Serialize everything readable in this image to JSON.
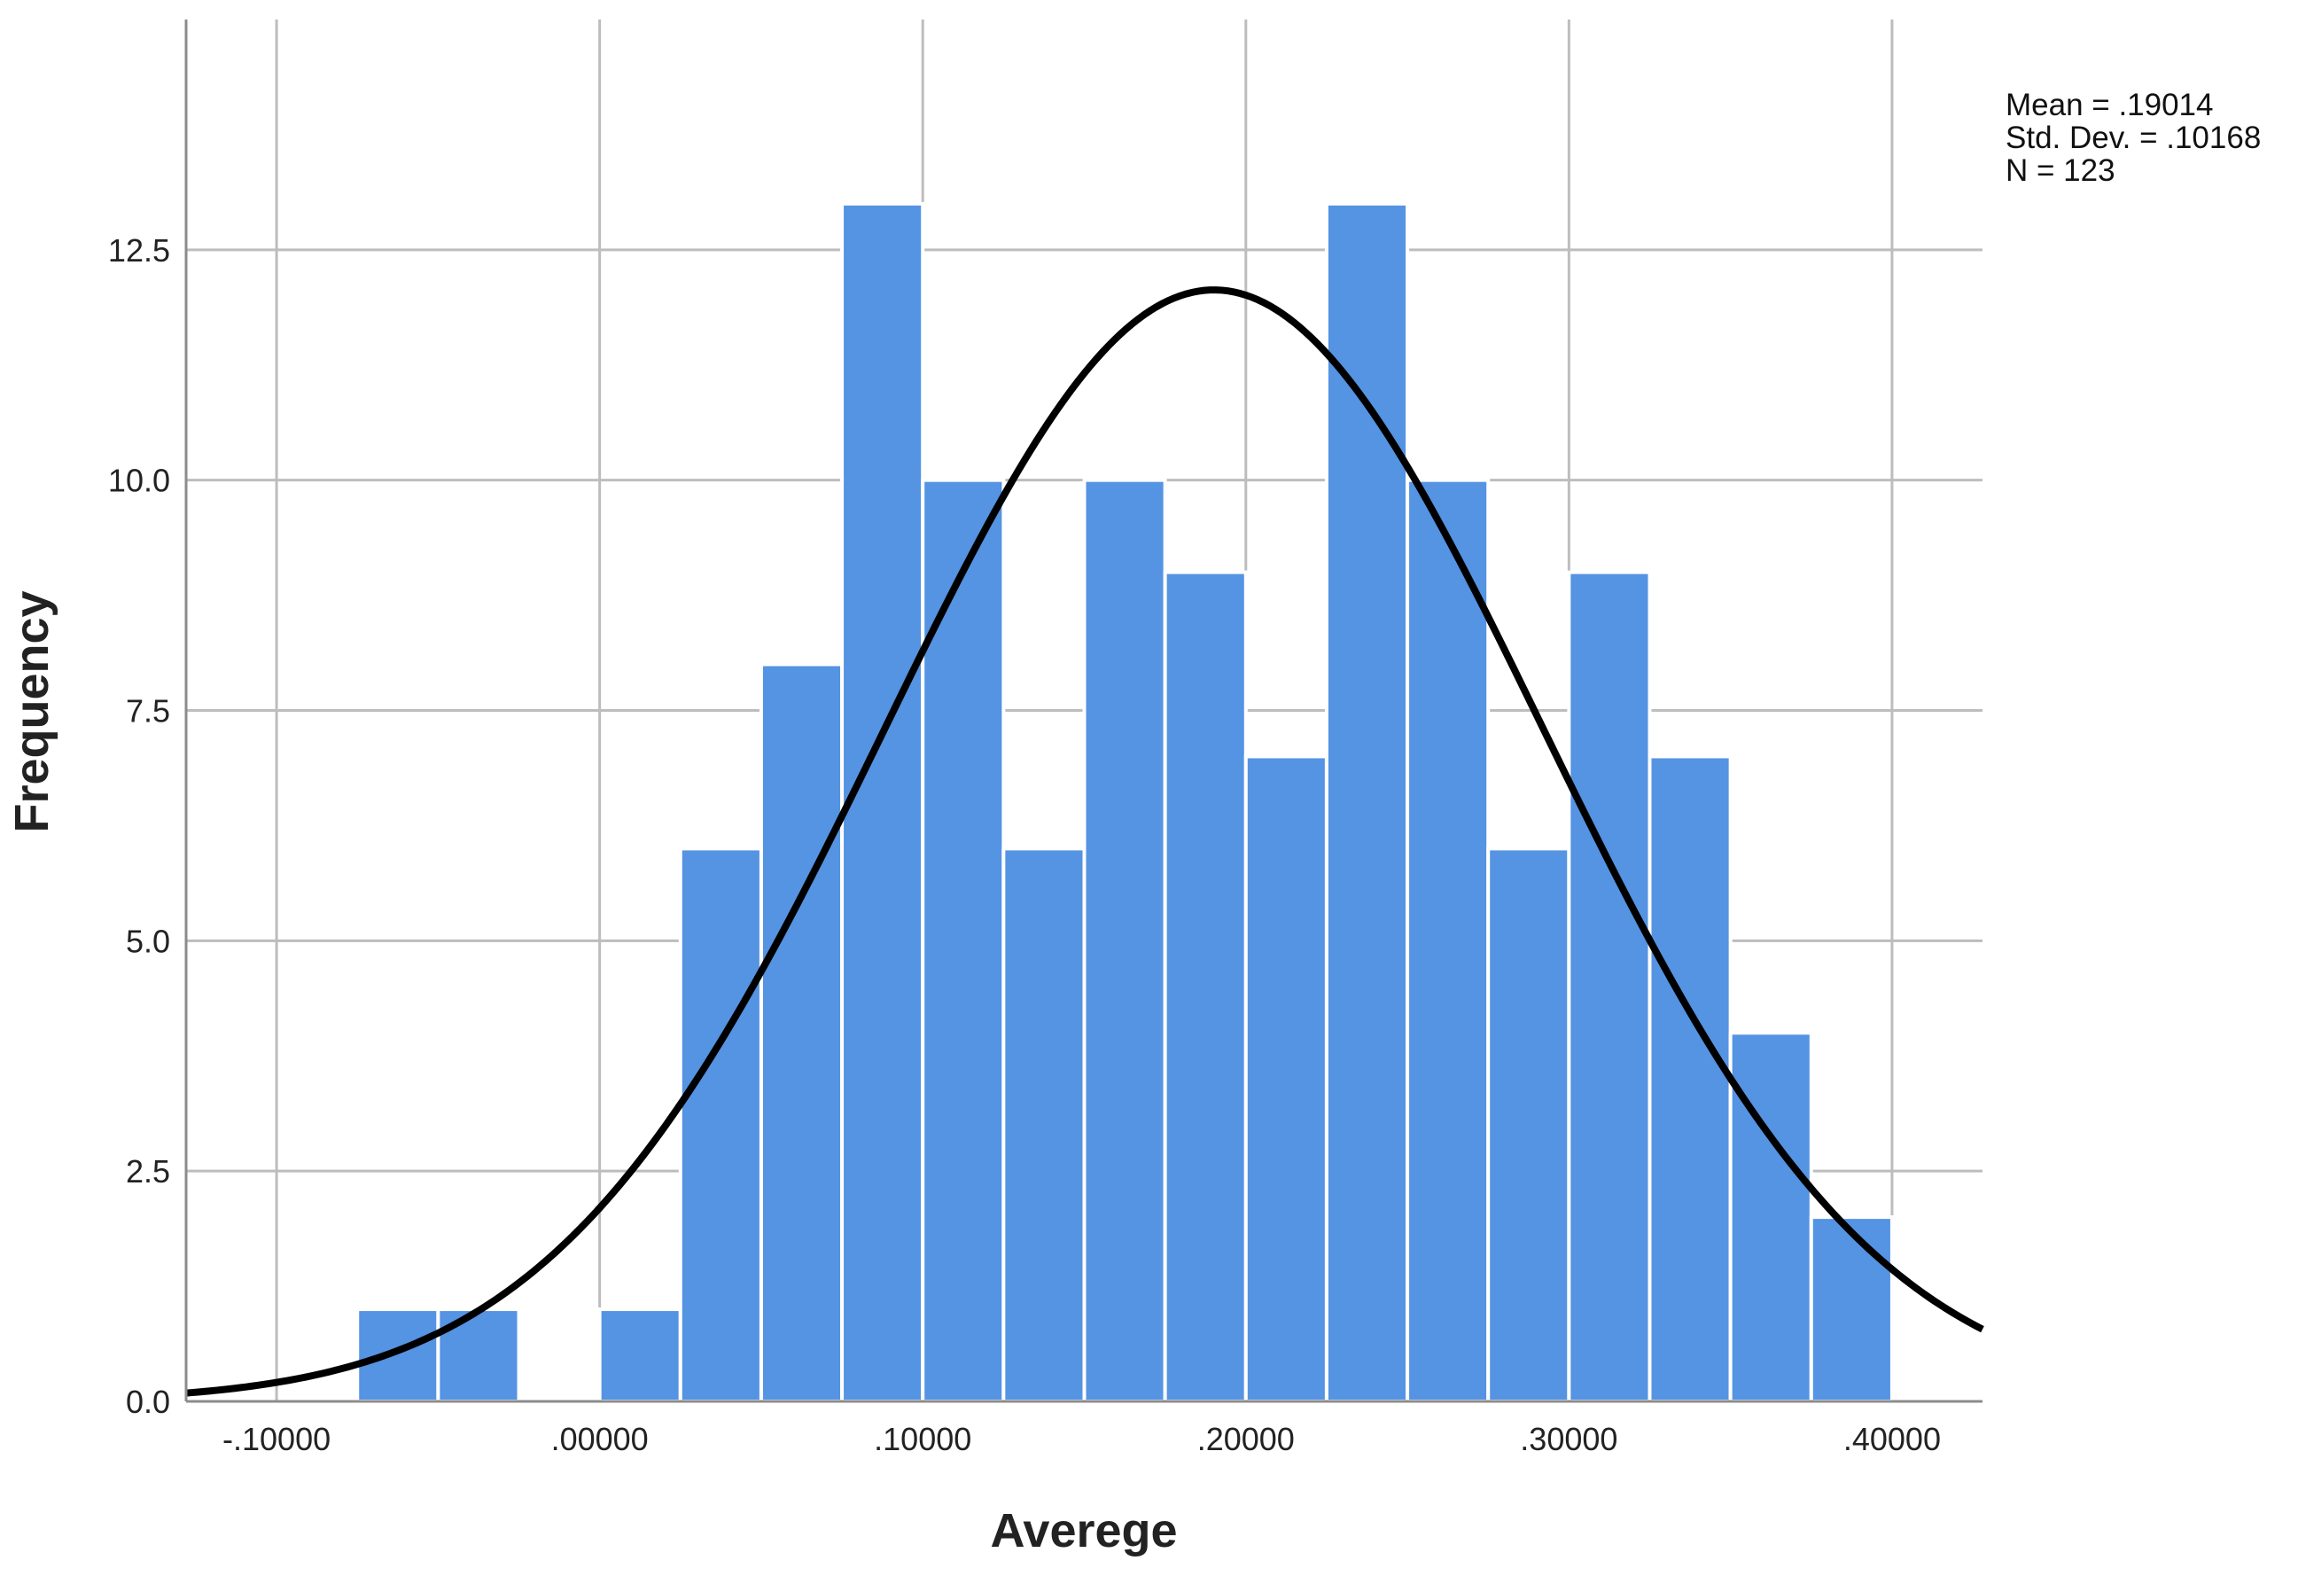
{
  "chart_data": {
    "type": "bar",
    "xlabel": "Averege",
    "ylabel": "Frequency",
    "xlim": [
      -0.128,
      0.428
    ],
    "ylim": [
      0,
      15
    ],
    "x_ticks": [
      -0.1,
      0.0,
      0.1,
      0.2,
      0.3,
      0.4
    ],
    "x_tick_labels": [
      "-.10000",
      ".00000",
      ".10000",
      ".20000",
      ".30000",
      ".40000"
    ],
    "y_ticks": [
      0,
      2.5,
      5,
      7.5,
      10,
      12.5
    ],
    "y_tick_labels": [
      "0.0",
      "2.5",
      "5.0",
      "7.5",
      "10.0",
      "12.5"
    ],
    "grid": true,
    "bin_width": 0.025,
    "bins": [
      {
        "start": -0.075,
        "end": -0.05,
        "count": 1
      },
      {
        "start": -0.05,
        "end": -0.025,
        "count": 1
      },
      {
        "start": -0.025,
        "end": 0.0,
        "count": 0
      },
      {
        "start": 0.0,
        "end": 0.025,
        "count": 1
      },
      {
        "start": 0.025,
        "end": 0.05,
        "count": 6
      },
      {
        "start": 0.05,
        "end": 0.075,
        "count": 8
      },
      {
        "start": 0.075,
        "end": 0.1,
        "count": 13
      },
      {
        "start": 0.1,
        "end": 0.125,
        "count": 10
      },
      {
        "start": 0.125,
        "end": 0.15,
        "count": 6
      },
      {
        "start": 0.15,
        "end": 0.175,
        "count": 10
      },
      {
        "start": 0.175,
        "end": 0.2,
        "count": 9
      },
      {
        "start": 0.2,
        "end": 0.225,
        "count": 7
      },
      {
        "start": 0.225,
        "end": 0.25,
        "count": 13
      },
      {
        "start": 0.25,
        "end": 0.275,
        "count": 10
      },
      {
        "start": 0.275,
        "end": 0.3,
        "count": 6
      },
      {
        "start": 0.3,
        "end": 0.325,
        "count": 9
      },
      {
        "start": 0.325,
        "end": 0.35,
        "count": 7
      },
      {
        "start": 0.35,
        "end": 0.375,
        "count": 4
      },
      {
        "start": 0.375,
        "end": 0.4,
        "count": 2
      }
    ],
    "normal_curve": {
      "mean": 0.19014,
      "std_dev": 0.10168,
      "n": 123
    },
    "stats_legend": {
      "position": "top-right",
      "lines": [
        "Mean = .19014",
        "Std. Dev. = .10168",
        "N = 123"
      ]
    },
    "colors": {
      "bar_fill": "#5593E3",
      "bar_edge": "#ffffff",
      "curve": "#000000",
      "grid": "#BDBDBD",
      "axis": "#8C8C8C",
      "text": "#222222"
    }
  }
}
